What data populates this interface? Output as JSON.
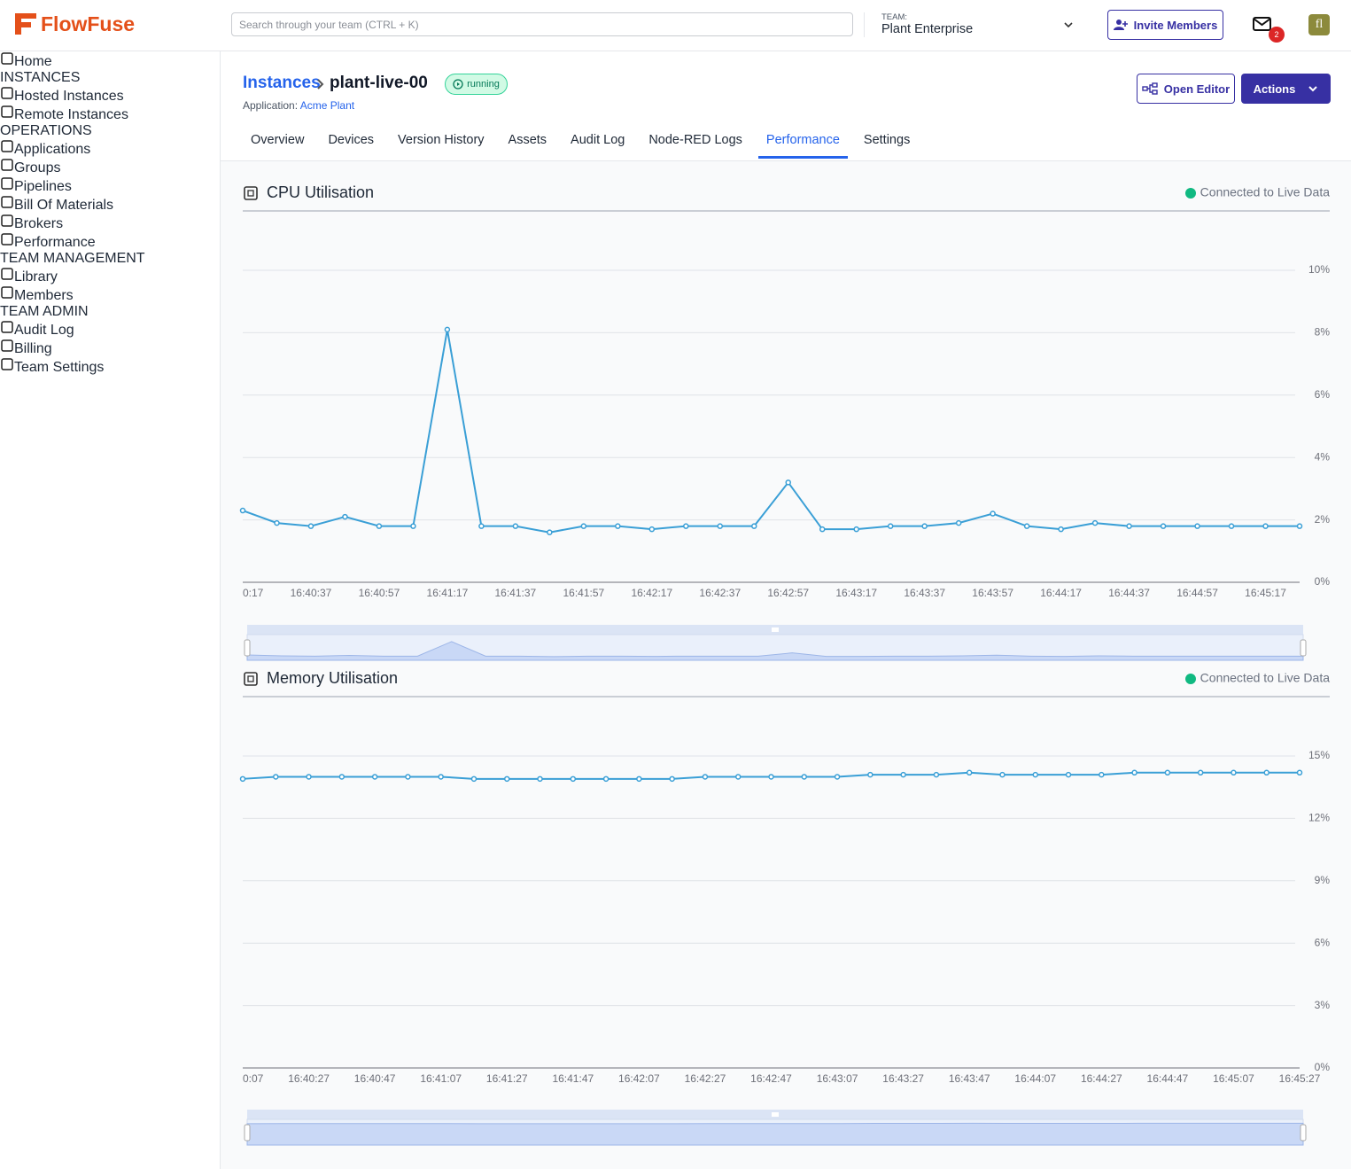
{
  "header": {
    "logo": "FlowFuse",
    "search_placeholder": "Search through your team (CTRL + K)",
    "team_label": "TEAM:",
    "team_name": "Plant Enterprise",
    "invite_button": "Invite Members",
    "notification_count": 2,
    "avatar": "fl"
  },
  "sidebar": {
    "home": "Home",
    "sections": [
      {
        "title": "INSTANCES",
        "items": [
          "Hosted Instances",
          "Remote Instances"
        ]
      },
      {
        "title": "OPERATIONS",
        "items": [
          "Applications",
          "Groups",
          "Pipelines",
          "Bill Of Materials",
          "Brokers",
          "Performance"
        ]
      },
      {
        "title": "TEAM MANAGEMENT",
        "items": [
          "Library",
          "Members"
        ]
      },
      {
        "title": "TEAM ADMIN",
        "items": [
          "Audit Log",
          "Billing",
          "Team Settings"
        ]
      }
    ]
  },
  "instance": {
    "breadcrumb": "Instances",
    "name": "plant-live-00",
    "status": "running",
    "application_label": "Application:",
    "application": "Acme Plant",
    "open_editor": "Open Editor",
    "actions": "Actions"
  },
  "tabs": {
    "items": [
      "Overview",
      "Devices",
      "Version History",
      "Assets",
      "Audit Log",
      "Node-RED Logs",
      "Performance",
      "Settings"
    ],
    "active": 6
  },
  "charts": [
    {
      "type": "line",
      "title": "CPU Utilisation",
      "status": "Connected to Live Data",
      "color": "#3a9fd6",
      "grid": true,
      "categories": [
        "0:17",
        null,
        "16:40:37",
        null,
        "16:40:57",
        null,
        "16:41:17",
        null,
        "16:41:37",
        null,
        "16:41:57",
        null,
        "16:42:17",
        null,
        "16:42:37",
        null,
        "16:42:57",
        null,
        "16:43:17",
        null,
        "16:43:37",
        null,
        "16:43:57",
        null,
        "16:44:17",
        null,
        "16:44:37",
        null,
        "16:44:57",
        null,
        "16:45:17",
        null
      ],
      "values": [
        2.3,
        1.9,
        1.8,
        2.1,
        1.8,
        1.8,
        8.1,
        1.8,
        1.8,
        1.6,
        1.8,
        1.8,
        1.7,
        1.8,
        1.8,
        1.8,
        3.2,
        1.7,
        1.7,
        1.8,
        1.8,
        1.9,
        2.2,
        1.8,
        1.7,
        1.9,
        1.8,
        1.8,
        1.8,
        1.8,
        1.8,
        1.8
      ],
      "ylim": [
        0,
        10
      ],
      "yticks": [
        {
          "value": 0,
          "label": "0%"
        },
        {
          "value": 2,
          "label": "2%"
        },
        {
          "value": 4,
          "label": "4%"
        },
        {
          "value": 6,
          "label": "6%"
        },
        {
          "value": 8,
          "label": "8%"
        },
        {
          "value": 10,
          "label": "10%"
        }
      ]
    },
    {
      "type": "line",
      "title": "Memory Utilisation",
      "status": "Connected to Live Data",
      "color": "#3a9fd6",
      "grid": true,
      "categories": [
        "0:07",
        null,
        "16:40:27",
        null,
        "16:40:47",
        null,
        "16:41:07",
        null,
        "16:41:27",
        null,
        "16:41:47",
        null,
        "16:42:07",
        null,
        "16:42:27",
        null,
        "16:42:47",
        null,
        "16:43:07",
        null,
        "16:43:27",
        null,
        "16:43:47",
        null,
        "16:44:07",
        null,
        "16:44:27",
        null,
        "16:44:47",
        null,
        "16:45:07",
        null,
        "16:45:27"
      ],
      "values": [
        13.9,
        14.0,
        14.0,
        14.0,
        14.0,
        14.0,
        14.0,
        13.9,
        13.9,
        13.9,
        13.9,
        13.9,
        13.9,
        13.9,
        14.0,
        14.0,
        14.0,
        14.0,
        14.0,
        14.1,
        14.1,
        14.1,
        14.2,
        14.1,
        14.1,
        14.1,
        14.1,
        14.2,
        14.2,
        14.2,
        14.2,
        14.2,
        14.2
      ],
      "ylim": [
        0,
        15
      ],
      "yticks": [
        {
          "value": 0,
          "label": "0%"
        },
        {
          "value": 3,
          "label": "3%"
        },
        {
          "value": 6,
          "label": "6%"
        },
        {
          "value": 9,
          "label": "9%"
        },
        {
          "value": 12,
          "label": "12%"
        },
        {
          "value": 15,
          "label": "15%"
        }
      ]
    }
  ]
}
